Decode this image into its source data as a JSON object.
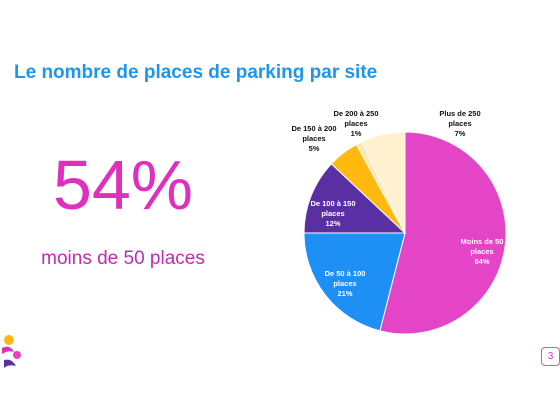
{
  "title": "Le nombre de places de parking par site",
  "highlight": {
    "value": "54%",
    "caption": "moins de 50 places"
  },
  "page_number": "3",
  "colors": {
    "title": "#1e96f0",
    "highlight": "#e02fbe"
  },
  "chart_data": {
    "type": "pie",
    "slices": [
      {
        "label_lines": [
          "Moins de 50",
          "places",
          "54%"
        ],
        "name": "Moins de 50 places",
        "value": 54,
        "color": "#e445c7"
      },
      {
        "label_lines": [
          "De 50 à 100",
          "places",
          "21%"
        ],
        "name": "De 50 à 100 places",
        "value": 21,
        "color": "#1e90f5"
      },
      {
        "label_lines": [
          "De 100 à 150",
          "places",
          "12%"
        ],
        "name": "De 100 à 150 places",
        "value": 12,
        "color": "#5b2fa4"
      },
      {
        "label_lines": [
          "De 150 à 200",
          "places",
          "5%"
        ],
        "name": "De 150 à 200 places",
        "value": 5,
        "color": "#ffb90f"
      },
      {
        "label_lines": [
          "De 200 à 250",
          "places",
          "1%"
        ],
        "name": "De 200 à 250 places",
        "value": 1,
        "color": "#ffe8b3"
      },
      {
        "label_lines": [
          "Plus de 250",
          "places",
          "7%"
        ],
        "name": "Plus de 250 places",
        "value": 7,
        "color": "#fff1cf"
      }
    ]
  }
}
